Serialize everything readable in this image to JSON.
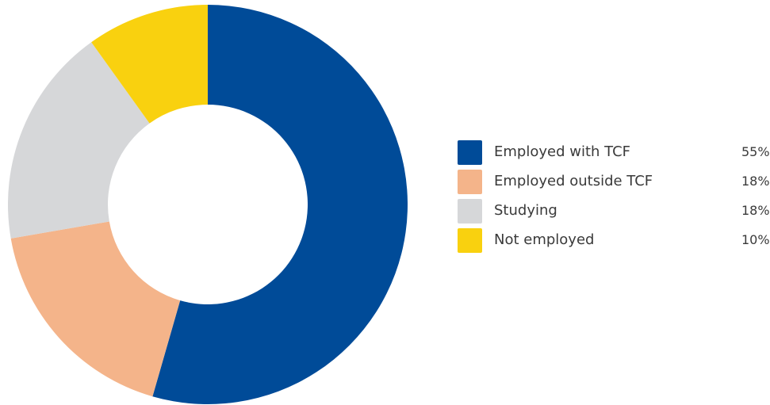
{
  "chart_data": {
    "type": "pie",
    "style": "donut",
    "categories": [
      "Employed with TCF",
      "Employed outside TCF",
      "Studying",
      "Not employed"
    ],
    "values": [
      55,
      18,
      18,
      10
    ],
    "value_labels": [
      "55%",
      "18%",
      "18%",
      "10%"
    ],
    "colors": [
      "#004B98",
      "#F4B48A",
      "#D6D7D9",
      "#F9D10F"
    ],
    "legend_position": "right"
  },
  "legend": {
    "items": [
      {
        "label": "Employed with TCF",
        "value": "55%",
        "color": "#004B98"
      },
      {
        "label": "Employed outside TCF",
        "value": "18%",
        "color": "#F4B48A"
      },
      {
        "label": "Studying",
        "value": "18%",
        "color": "#D6D7D9"
      },
      {
        "label": "Not employed",
        "value": "10%",
        "color": "#F9D10F"
      }
    ]
  }
}
